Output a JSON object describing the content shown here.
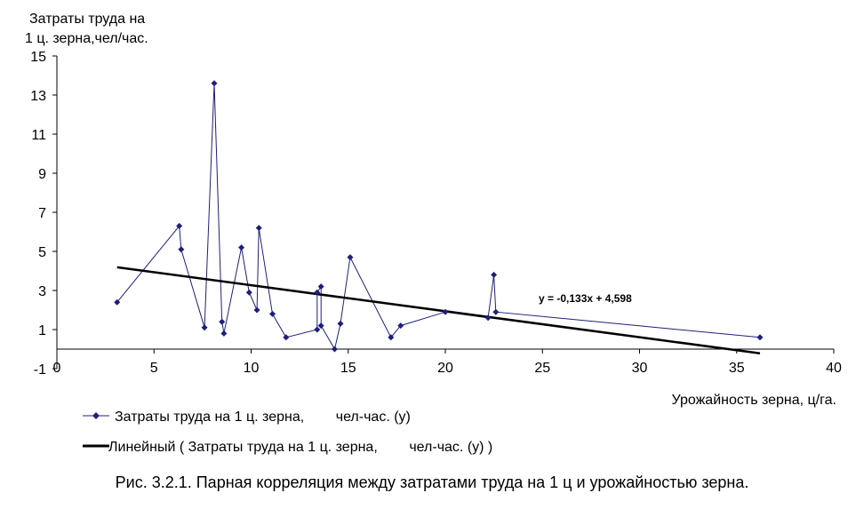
{
  "chart_data": {
    "type": "scatter",
    "ylabel_line1": "Затраты труда на",
    "ylabel_line2": "1 ц. зерна,чел/час.",
    "xlabel": "Урожайность зерна, ц/га.",
    "xlim": [
      0,
      40
    ],
    "ylim": [
      -1,
      15
    ],
    "x_ticks": [
      0,
      5,
      10,
      15,
      20,
      25,
      30,
      35,
      40
    ],
    "y_ticks": [
      15,
      13,
      11,
      9,
      7,
      5,
      3,
      1,
      -1
    ],
    "grid": false,
    "legend_position": "bottom-left",
    "series": [
      {
        "name": "Затраты труда на 1 ц. зерна,        чел-час. (у)",
        "color": "#1f1f7a",
        "marker": "diamond",
        "points": [
          [
            3.1,
            2.4
          ],
          [
            6.3,
            6.3
          ],
          [
            6.4,
            5.1
          ],
          [
            7.6,
            1.1
          ],
          [
            8.1,
            13.6
          ],
          [
            8.5,
            1.4
          ],
          [
            8.6,
            0.8
          ],
          [
            9.5,
            5.2
          ],
          [
            9.9,
            2.9
          ],
          [
            10.3,
            2.0
          ],
          [
            10.4,
            6.2
          ],
          [
            11.1,
            1.8
          ],
          [
            11.8,
            0.6
          ],
          [
            13.4,
            1.0
          ],
          [
            13.4,
            2.9
          ],
          [
            13.6,
            3.2
          ],
          [
            13.6,
            1.2
          ],
          [
            14.3,
            0.0
          ],
          [
            14.6,
            1.3
          ],
          [
            15.1,
            4.7
          ],
          [
            17.2,
            0.6
          ],
          [
            17.7,
            1.2
          ],
          [
            20.0,
            1.9
          ],
          [
            22.2,
            1.6
          ],
          [
            22.5,
            3.8
          ],
          [
            22.6,
            1.9
          ],
          [
            36.2,
            0.6
          ]
        ]
      },
      {
        "name": "Линейный ( Затраты труда на 1 ц. зерна,        чел-час. (у) )",
        "color": "#000000",
        "type": "trendline",
        "equation": "y = -0,133x + 4,598",
        "slope": -0.133,
        "intercept": 4.598,
        "x_range": [
          3.1,
          36.2
        ]
      }
    ]
  },
  "caption": "Рис. 3.2.1. Парная корреляция между затратами труда на 1 ц и урожайностью зерна."
}
